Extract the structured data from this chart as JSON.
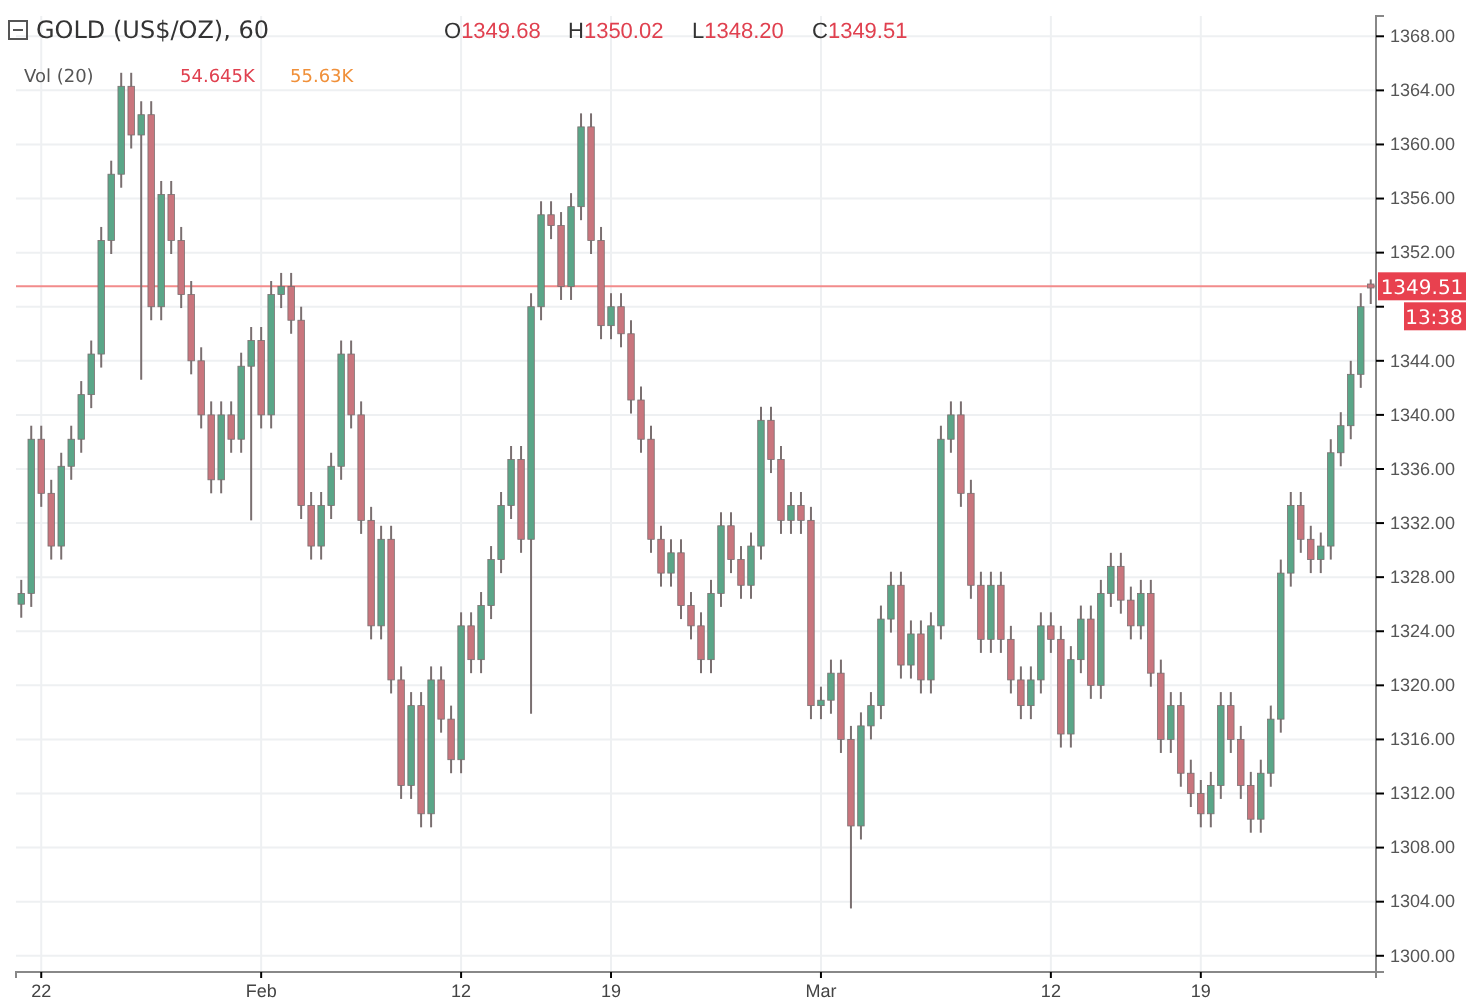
{
  "chart_data": {
    "type": "candlestick",
    "title": "GOLD (US$/OZ), 60",
    "categories": [
      null,
      null,
      "22",
      null,
      null,
      null,
      null,
      null,
      null,
      null,
      null,
      null,
      null,
      null,
      null,
      null,
      null,
      null,
      null,
      null,
      null,
      null,
      null,
      null,
      "Feb",
      null,
      null,
      null,
      null,
      null,
      null,
      null,
      null,
      null,
      null,
      null,
      null,
      null,
      null,
      null,
      null,
      null,
      null,
      null,
      "12",
      null,
      null,
      null,
      null,
      null,
      null,
      null,
      null,
      null,
      null,
      null,
      null,
      null,
      null,
      "19",
      null,
      null,
      null,
      null,
      null,
      null,
      null,
      null,
      null,
      null,
      null,
      null,
      null,
      null,
      null,
      null,
      null,
      null,
      null,
      null,
      "Mar",
      null,
      null,
      null,
      null,
      null,
      null,
      null,
      null,
      null,
      null,
      null,
      null,
      null,
      null,
      null,
      null,
      null,
      null,
      null,
      null,
      null,
      null,
      "12",
      null,
      null,
      null,
      null,
      null,
      null,
      null,
      null,
      null,
      null,
      null,
      null,
      null,
      null,
      "19",
      null,
      null,
      null,
      null,
      null,
      null,
      null,
      null,
      null,
      null,
      null,
      null,
      null,
      null,
      null,
      null,
      null
    ],
    "ohlc": [
      [
        1326.0,
        1327.8,
        1325.0,
        1326.8
      ],
      [
        1326.8,
        1339.2,
        1325.8,
        1338.2
      ],
      [
        1338.2,
        1339.2,
        1333.2,
        1334.2
      ],
      [
        1334.2,
        1335.2,
        1329.3,
        1330.3
      ],
      [
        1330.3,
        1337.2,
        1329.3,
        1336.2
      ],
      [
        1336.2,
        1339.2,
        1335.2,
        1338.2
      ],
      [
        1338.2,
        1342.5,
        1337.2,
        1341.5
      ],
      [
        1341.5,
        1345.5,
        1340.5,
        1344.5
      ],
      [
        1344.5,
        1353.9,
        1343.5,
        1352.9
      ],
      [
        1352.9,
        1358.8,
        1351.9,
        1357.8
      ],
      [
        1357.8,
        1365.3,
        1356.8,
        1364.3
      ],
      [
        1364.3,
        1365.3,
        1359.7,
        1360.7
      ],
      [
        1360.7,
        1363.2,
        1342.6,
        1362.2
      ],
      [
        1362.2,
        1363.2,
        1347.0,
        1348.0
      ],
      [
        1348.0,
        1357.3,
        1347.0,
        1356.3
      ],
      [
        1356.3,
        1357.3,
        1351.9,
        1352.9
      ],
      [
        1352.9,
        1353.9,
        1347.9,
        1348.9
      ],
      [
        1348.9,
        1349.9,
        1343.0,
        1344.0
      ],
      [
        1344.0,
        1345.0,
        1339.0,
        1340.0
      ],
      [
        1340.0,
        1341.0,
        1334.2,
        1335.2
      ],
      [
        1335.2,
        1341.0,
        1334.2,
        1340.0
      ],
      [
        1340.0,
        1341.0,
        1337.2,
        1338.2
      ],
      [
        1338.2,
        1344.6,
        1337.2,
        1343.6
      ],
      [
        1343.6,
        1346.5,
        1332.2,
        1345.5
      ],
      [
        1345.5,
        1346.5,
        1339.0,
        1340.0
      ],
      [
        1340.0,
        1349.9,
        1339.0,
        1348.9
      ],
      [
        1348.9,
        1350.5,
        1347.9,
        1349.5
      ],
      [
        1349.5,
        1350.5,
        1346.0,
        1347.0
      ],
      [
        1347.0,
        1348.0,
        1332.3,
        1333.3
      ],
      [
        1333.3,
        1334.3,
        1329.3,
        1330.3
      ],
      [
        1330.3,
        1334.3,
        1329.3,
        1333.3
      ],
      [
        1333.3,
        1337.2,
        1332.3,
        1336.2
      ],
      [
        1336.2,
        1345.5,
        1335.2,
        1344.5
      ],
      [
        1344.5,
        1345.5,
        1339.0,
        1340.0
      ],
      [
        1340.0,
        1341.0,
        1331.2,
        1332.2
      ],
      [
        1332.2,
        1333.2,
        1323.4,
        1324.4
      ],
      [
        1324.4,
        1331.8,
        1323.4,
        1330.8
      ],
      [
        1330.8,
        1331.8,
        1319.4,
        1320.4
      ],
      [
        1320.4,
        1321.4,
        1311.6,
        1312.6
      ],
      [
        1312.6,
        1319.5,
        1311.6,
        1318.5
      ],
      [
        1318.5,
        1319.5,
        1309.5,
        1310.5
      ],
      [
        1310.5,
        1321.4,
        1309.5,
        1320.4
      ],
      [
        1320.4,
        1321.4,
        1316.5,
        1317.5
      ],
      [
        1317.5,
        1318.5,
        1313.5,
        1314.5
      ],
      [
        1314.5,
        1325.4,
        1313.5,
        1324.4
      ],
      [
        1324.4,
        1325.4,
        1320.9,
        1321.9
      ],
      [
        1321.9,
        1326.9,
        1320.9,
        1325.9
      ],
      [
        1325.9,
        1330.3,
        1324.9,
        1329.3
      ],
      [
        1329.3,
        1334.3,
        1328.3,
        1333.3
      ],
      [
        1333.3,
        1337.7,
        1332.3,
        1336.7
      ],
      [
        1336.7,
        1337.7,
        1329.8,
        1330.8
      ],
      [
        1330.8,
        1349.0,
        1317.9,
        1348.0
      ],
      [
        1348.0,
        1355.8,
        1347.0,
        1354.8
      ],
      [
        1354.8,
        1355.8,
        1353.0,
        1354.0
      ],
      [
        1354.0,
        1355.0,
        1348.5,
        1349.5
      ],
      [
        1349.5,
        1356.4,
        1348.5,
        1355.4
      ],
      [
        1355.4,
        1362.3,
        1354.4,
        1361.3
      ],
      [
        1361.3,
        1362.3,
        1351.9,
        1352.9
      ],
      [
        1352.9,
        1353.9,
        1345.6,
        1346.6
      ],
      [
        1346.6,
        1349.0,
        1345.6,
        1348.0
      ],
      [
        1348.0,
        1349.0,
        1345.0,
        1346.0
      ],
      [
        1346.0,
        1347.0,
        1340.1,
        1341.1
      ],
      [
        1341.1,
        1342.1,
        1337.2,
        1338.2
      ],
      [
        1338.2,
        1339.2,
        1329.8,
        1330.8
      ],
      [
        1330.8,
        1331.8,
        1327.3,
        1328.3
      ],
      [
        1328.3,
        1330.8,
        1327.3,
        1329.8
      ],
      [
        1329.8,
        1330.8,
        1324.9,
        1325.9
      ],
      [
        1325.9,
        1326.9,
        1323.4,
        1324.4
      ],
      [
        1324.4,
        1325.4,
        1320.9,
        1321.9
      ],
      [
        1321.9,
        1327.8,
        1320.9,
        1326.8
      ],
      [
        1326.8,
        1332.8,
        1325.8,
        1331.8
      ],
      [
        1331.8,
        1332.8,
        1328.3,
        1329.3
      ],
      [
        1329.3,
        1330.3,
        1326.4,
        1327.4
      ],
      [
        1327.4,
        1331.3,
        1326.4,
        1330.3
      ],
      [
        1330.3,
        1340.6,
        1329.3,
        1339.6
      ],
      [
        1339.6,
        1340.6,
        1335.7,
        1336.7
      ],
      [
        1336.7,
        1337.7,
        1331.2,
        1332.2
      ],
      [
        1332.2,
        1334.3,
        1331.2,
        1333.3
      ],
      [
        1333.3,
        1334.3,
        1331.2,
        1332.2
      ],
      [
        1332.2,
        1333.2,
        1317.5,
        1318.5
      ],
      [
        1318.5,
        1319.9,
        1317.5,
        1318.9
      ],
      [
        1318.9,
        1321.9,
        1317.9,
        1320.9
      ],
      [
        1320.9,
        1321.9,
        1315.0,
        1316.0
      ],
      [
        1316.0,
        1317.0,
        1303.5,
        1309.6
      ],
      [
        1309.6,
        1318.0,
        1308.6,
        1317.0
      ],
      [
        1317.0,
        1319.5,
        1316.0,
        1318.5
      ],
      [
        1318.5,
        1325.9,
        1317.5,
        1324.9
      ],
      [
        1324.9,
        1328.4,
        1323.9,
        1327.4
      ],
      [
        1327.4,
        1328.4,
        1320.5,
        1321.5
      ],
      [
        1321.5,
        1324.8,
        1320.5,
        1323.8
      ],
      [
        1323.8,
        1324.8,
        1319.4,
        1320.4
      ],
      [
        1320.4,
        1325.4,
        1319.4,
        1324.4
      ],
      [
        1324.4,
        1339.2,
        1323.4,
        1338.2
      ],
      [
        1338.2,
        1341.0,
        1337.2,
        1340.0
      ],
      [
        1340.0,
        1341.0,
        1333.2,
        1334.2
      ],
      [
        1334.2,
        1335.2,
        1326.4,
        1327.4
      ],
      [
        1327.4,
        1328.4,
        1322.4,
        1323.4
      ],
      [
        1323.4,
        1328.4,
        1322.4,
        1327.4
      ],
      [
        1327.4,
        1328.4,
        1322.4,
        1323.4
      ],
      [
        1323.4,
        1324.4,
        1319.4,
        1320.4
      ],
      [
        1320.4,
        1321.4,
        1317.5,
        1318.5
      ],
      [
        1318.5,
        1321.4,
        1317.5,
        1320.4
      ],
      [
        1320.4,
        1325.4,
        1319.4,
        1324.4
      ],
      [
        1324.4,
        1325.4,
        1322.4,
        1323.4
      ],
      [
        1323.4,
        1324.4,
        1315.4,
        1316.4
      ],
      [
        1316.4,
        1322.9,
        1315.4,
        1321.9
      ],
      [
        1321.9,
        1325.9,
        1320.9,
        1324.9
      ],
      [
        1324.9,
        1325.9,
        1319.0,
        1320.0
      ],
      [
        1320.0,
        1327.8,
        1319.0,
        1326.8
      ],
      [
        1326.8,
        1329.8,
        1325.8,
        1328.8
      ],
      [
        1328.8,
        1329.8,
        1325.3,
        1326.3
      ],
      [
        1326.3,
        1327.3,
        1323.4,
        1324.4
      ],
      [
        1324.4,
        1327.8,
        1323.4,
        1326.8
      ],
      [
        1326.8,
        1327.8,
        1319.9,
        1320.9
      ],
      [
        1320.9,
        1321.9,
        1315.0,
        1316.0
      ],
      [
        1316.0,
        1319.5,
        1315.0,
        1318.5
      ],
      [
        1318.5,
        1319.5,
        1312.5,
        1313.5
      ],
      [
        1313.5,
        1314.5,
        1311.0,
        1312.0
      ],
      [
        1312.0,
        1313.0,
        1309.5,
        1310.5
      ],
      [
        1310.5,
        1313.6,
        1309.5,
        1312.6
      ],
      [
        1312.6,
        1319.5,
        1311.6,
        1318.5
      ],
      [
        1318.5,
        1319.5,
        1315.0,
        1316.0
      ],
      [
        1316.0,
        1317.0,
        1311.6,
        1312.6
      ],
      [
        1312.6,
        1313.6,
        1309.1,
        1310.1
      ],
      [
        1310.1,
        1314.5,
        1309.1,
        1313.5
      ],
      [
        1313.5,
        1318.5,
        1312.5,
        1317.5
      ],
      [
        1317.5,
        1329.3,
        1316.5,
        1328.3
      ],
      [
        1328.3,
        1334.3,
        1327.3,
        1333.3
      ],
      [
        1333.3,
        1334.3,
        1329.8,
        1330.8
      ],
      [
        1330.8,
        1331.8,
        1328.3,
        1329.3
      ],
      [
        1329.3,
        1331.3,
        1328.3,
        1330.3
      ],
      [
        1330.3,
        1338.2,
        1329.3,
        1337.2
      ],
      [
        1337.2,
        1340.2,
        1336.2,
        1339.2
      ],
      [
        1339.2,
        1344.0,
        1338.2,
        1343.0
      ],
      [
        1343.0,
        1349.0,
        1342.0,
        1348.0
      ],
      [
        1349.68,
        1350.02,
        1348.2,
        1349.51
      ]
    ],
    "ylim": [
      1298.8,
      1369.5
    ],
    "yticks": [
      {
        "value": 1300,
        "label": "1300.00"
      },
      {
        "value": 1304,
        "label": "1304.00"
      },
      {
        "value": 1308,
        "label": "1308.00"
      },
      {
        "value": 1312,
        "label": "1312.00"
      },
      {
        "value": 1316,
        "label": "1316.00"
      },
      {
        "value": 1320,
        "label": "1320.00"
      },
      {
        "value": 1324,
        "label": "1324.00"
      },
      {
        "value": 1328,
        "label": "1328.00"
      },
      {
        "value": 1332,
        "label": "1332.00"
      },
      {
        "value": 1336,
        "label": "1336.00"
      },
      {
        "value": 1340,
        "label": "1340.00"
      },
      {
        "value": 1344,
        "label": "1344.00"
      },
      {
        "value": 1348,
        "label": null
      },
      {
        "value": 1352,
        "label": "1352.00"
      },
      {
        "value": 1356,
        "label": "1356.00"
      },
      {
        "value": 1360,
        "label": "1360.00"
      },
      {
        "value": 1364,
        "label": "1364.00"
      },
      {
        "value": 1368,
        "label": "1368.00"
      }
    ],
    "grid": true,
    "ref_lines": [
      {
        "axis": "y",
        "value": 1349.51,
        "label": "1349.51",
        "color": "#f28b8b"
      }
    ],
    "annotations": [
      "O1349.68",
      "H1350.02",
      "L1348.20",
      "C1349.51",
      "Vol (20)",
      "54.645K",
      "55.63K",
      "13:38"
    ]
  }
}
